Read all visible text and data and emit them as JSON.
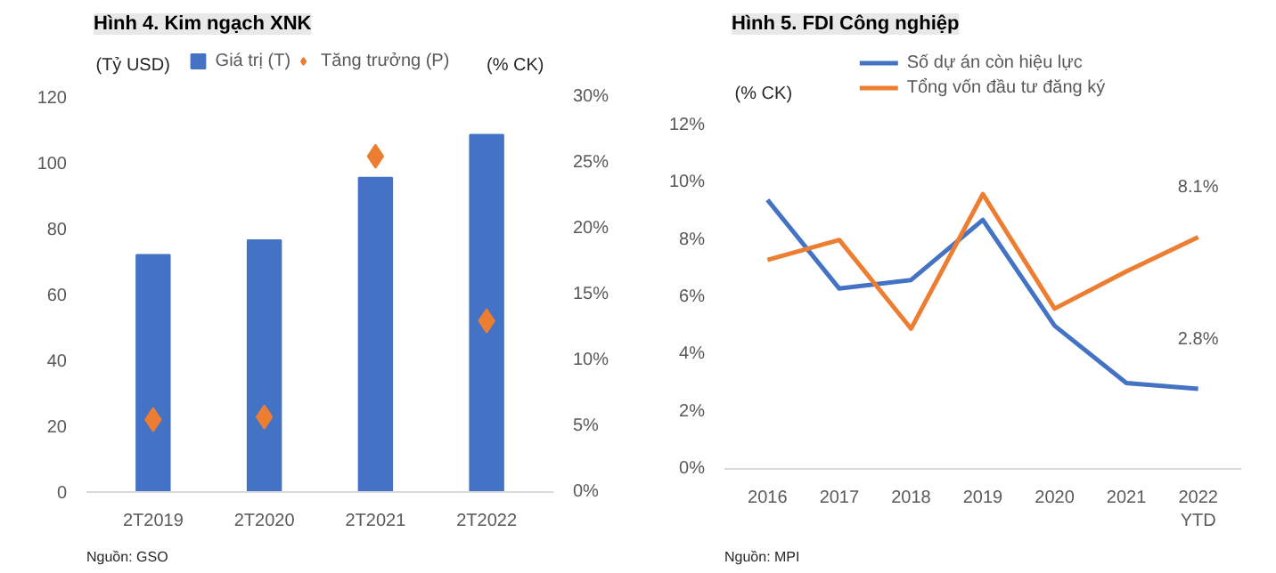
{
  "chart_data": [
    {
      "type": "bar",
      "title": "Hình 4. Kim ngạch XNK",
      "ylabel": "(Tỷ USD)",
      "y2label": "(% CK)",
      "categories": [
        "2T2019",
        "2T2020",
        "2T2021",
        "2T2022"
      ],
      "series": [
        {
          "name": "Giá trị (T)",
          "color": "#4472c4",
          "values": [
            72,
            76.5,
            95.5,
            108.5
          ]
        },
        {
          "name": "Tăng trưởng (P)",
          "type": "scatter",
          "marker": "diamond",
          "axis": "y2",
          "color": "#ed7d31",
          "values": [
            5.5,
            5.7,
            25.5,
            13.0
          ]
        }
      ],
      "ylim": [
        0,
        120
      ],
      "yticks": [
        0,
        20,
        40,
        60,
        80,
        100,
        120
      ],
      "y2lim": [
        0,
        30
      ],
      "y2ticks": [
        {
          "value": 0,
          "label": "0%"
        },
        {
          "value": 5,
          "label": "5%"
        },
        {
          "value": 10,
          "label": "10%"
        },
        {
          "value": 15,
          "label": "15%"
        },
        {
          "value": 20,
          "label": "20%"
        },
        {
          "value": 25,
          "label": "25%"
        },
        {
          "value": 30,
          "label": "30%"
        }
      ],
      "legend": "top",
      "annotations": [
        "Nguồn: GSO"
      ]
    },
    {
      "type": "line",
      "title": "Hình 5. FDI Công nghiệp",
      "ylabel": "(% CK)",
      "categories": [
        "2016",
        "2017",
        "2018",
        "2019",
        "2020",
        "2021",
        "2022\nYTD"
      ],
      "series": [
        {
          "name": "Số dự án còn hiệu lực",
          "color": "#4472c4",
          "values": [
            9.4,
            6.3,
            6.6,
            8.7,
            5.0,
            3.0,
            2.8
          ],
          "value_labels": [
            null,
            null,
            null,
            null,
            null,
            null,
            "2.8%"
          ]
        },
        {
          "name": "Tổng vốn đầu tư đăng ký",
          "color": "#ed7d31",
          "values": [
            7.3,
            8.0,
            4.9,
            9.6,
            5.6,
            6.9,
            8.1
          ],
          "value_labels": [
            null,
            null,
            null,
            null,
            null,
            null,
            "8.1%"
          ]
        }
      ],
      "ylim": [
        0,
        12
      ],
      "yticks": [
        {
          "value": 0,
          "label": "0%"
        },
        {
          "value": 2,
          "label": "2%"
        },
        {
          "value": 4,
          "label": "4%"
        },
        {
          "value": 6,
          "label": "6%"
        },
        {
          "value": 8,
          "label": "8%"
        },
        {
          "value": 10,
          "label": "10%"
        },
        {
          "value": 12,
          "label": "12%"
        }
      ],
      "legend": "top",
      "annotations": [
        "Nguồn: MPI"
      ]
    }
  ]
}
